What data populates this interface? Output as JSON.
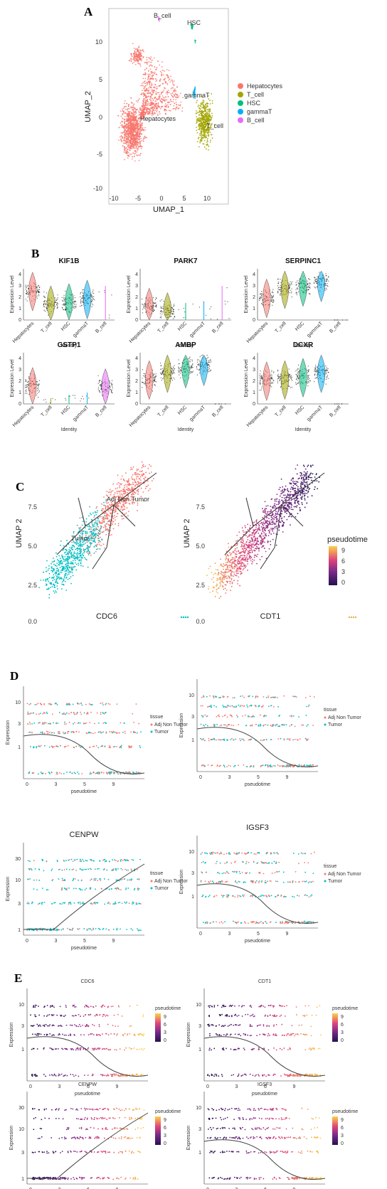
{
  "panels": {
    "A": "A",
    "B": "B",
    "C": "C",
    "D": "D",
    "E": "E"
  },
  "colors": {
    "Hepatocytes": "#F8766D",
    "T_cell": "#A3A500",
    "HSC": "#00BF7D",
    "gammaT": "#00B0F6",
    "B_cell": "#E76BF3",
    "adj": "#F8766D",
    "tumor": "#00BFC4"
  },
  "chart_data": [
    {
      "id": "A",
      "type": "scatter",
      "xlabel": "UMAP_1",
      "ylabel": "UMAP_2",
      "xlim": [
        -12,
        14
      ],
      "ylim": [
        -11,
        14
      ],
      "xticks": [
        "-10",
        "-5",
        "0",
        "5",
        "10"
      ],
      "yticks": [
        "-10",
        "-5",
        "0",
        "5",
        "10"
      ],
      "legend": [
        "Hepatocytes",
        "T_cell",
        "HSC",
        "gammaT",
        "B_cell"
      ],
      "legend_position": "right",
      "cluster_labels": [
        {
          "text": "Hepatocytes",
          "x": -3,
          "y": 0
        },
        {
          "text": "T_cell",
          "x": 10,
          "y": -1
        },
        {
          "text": "HSC",
          "x": 6,
          "y": 12.5
        },
        {
          "text": "gammaT",
          "x": 5,
          "y": 3
        },
        {
          "text": "B_cell",
          "x": -0.5,
          "y": 13.5
        }
      ]
    },
    {
      "id": "B",
      "type": "violin",
      "xlabel": "Identity",
      "ylabel": "Expression Level",
      "categories": [
        "Hepatocytes",
        "T_cell",
        "HSC",
        "gammaT",
        "B_cell"
      ],
      "ylim": [
        0,
        4.5
      ],
      "genes": [
        {
          "name": "KIF1B",
          "medians": [
            2.6,
            1.4,
            1.6,
            1.9,
            0
          ],
          "peak": [
            2.6,
            1.4,
            0.3,
            0.2,
            3.0
          ]
        },
        {
          "name": "PARK7",
          "medians": [
            1.2,
            0.8,
            0,
            0,
            0
          ],
          "peak": [
            1.2,
            0.8,
            1.5,
            1.6,
            3.0
          ]
        },
        {
          "name": "SERPINC1",
          "medians": [
            2.0,
            2.8,
            3.0,
            3.4,
            0
          ],
          "peak": [
            2.0,
            2.8,
            3.0,
            3.4,
            0
          ]
        },
        {
          "name": "GSTP1",
          "medians": [
            1.6,
            0,
            0,
            0,
            1.5
          ],
          "peak": [
            1.6,
            0.5,
            0.8,
            1.0,
            0.4
          ]
        },
        {
          "name": "AMBP",
          "medians": [
            2.2,
            2.8,
            3.2,
            3.4,
            0
          ],
          "peak": [
            2.2,
            2.8,
            3.2,
            3.4,
            0
          ]
        },
        {
          "name": "DCXR",
          "medians": [
            2.1,
            2.2,
            2.4,
            2.8,
            0
          ],
          "peak": [
            2.1,
            2.2,
            2.4,
            2.8,
            0
          ]
        }
      ]
    },
    {
      "id": "C",
      "type": "scatter",
      "plots": [
        {
          "name": "CDC6"
        },
        {
          "name": "CDT1"
        }
      ],
      "ylabel": "UMAP 2",
      "yticks": [
        "7.5",
        "5.0",
        "2.5",
        "0.0"
      ],
      "ylim": [
        0,
        8
      ],
      "tree_labels": [
        "Adj Non Tumor",
        "Tumor"
      ],
      "legend_title": "pseudotime",
      "legend_ticks": [
        "9",
        "6",
        "3",
        "0"
      ]
    },
    {
      "id": "D",
      "type": "scatter",
      "xlabel": "pseudotime",
      "ylabel": "Expression",
      "xticks": [
        "0",
        "3",
        "5",
        "9"
      ],
      "yticks": [
        "10",
        "3",
        "1"
      ],
      "legend_title": "tissue",
      "legend": [
        "Adj Non Tumor",
        "Tumor"
      ],
      "genes": [
        {
          "name": "CDC6",
          "trend": "decreasing"
        },
        {
          "name": "CDT1",
          "trend": "decreasing"
        },
        {
          "name": "CENPW",
          "trend": "increasing",
          "yticks": [
            "30",
            "10",
            "3",
            "1"
          ]
        },
        {
          "name": "IGSF3",
          "trend": "decreasing"
        }
      ]
    },
    {
      "id": "E",
      "type": "scatter",
      "xlabel": "pseudotime",
      "ylabel": "Expression",
      "xticks": [
        "0",
        "3",
        "6",
        "9"
      ],
      "legend_title": "pseudotime",
      "legend_ticks": [
        "9",
        "6",
        "3",
        "0"
      ],
      "genes": [
        {
          "name": "CDC6",
          "trend": "decreasing",
          "yticks": [
            "10",
            "3",
            "1"
          ]
        },
        {
          "name": "CDT1",
          "trend": "decreasing",
          "yticks": [
            "10",
            "3",
            "1"
          ]
        },
        {
          "name": "CENPW",
          "trend": "increasing",
          "yticks": [
            "30",
            "10",
            "3",
            "1"
          ]
        },
        {
          "name": "IGSF3",
          "trend": "decreasing",
          "yticks": [
            "10",
            "3",
            "1"
          ]
        }
      ]
    }
  ]
}
